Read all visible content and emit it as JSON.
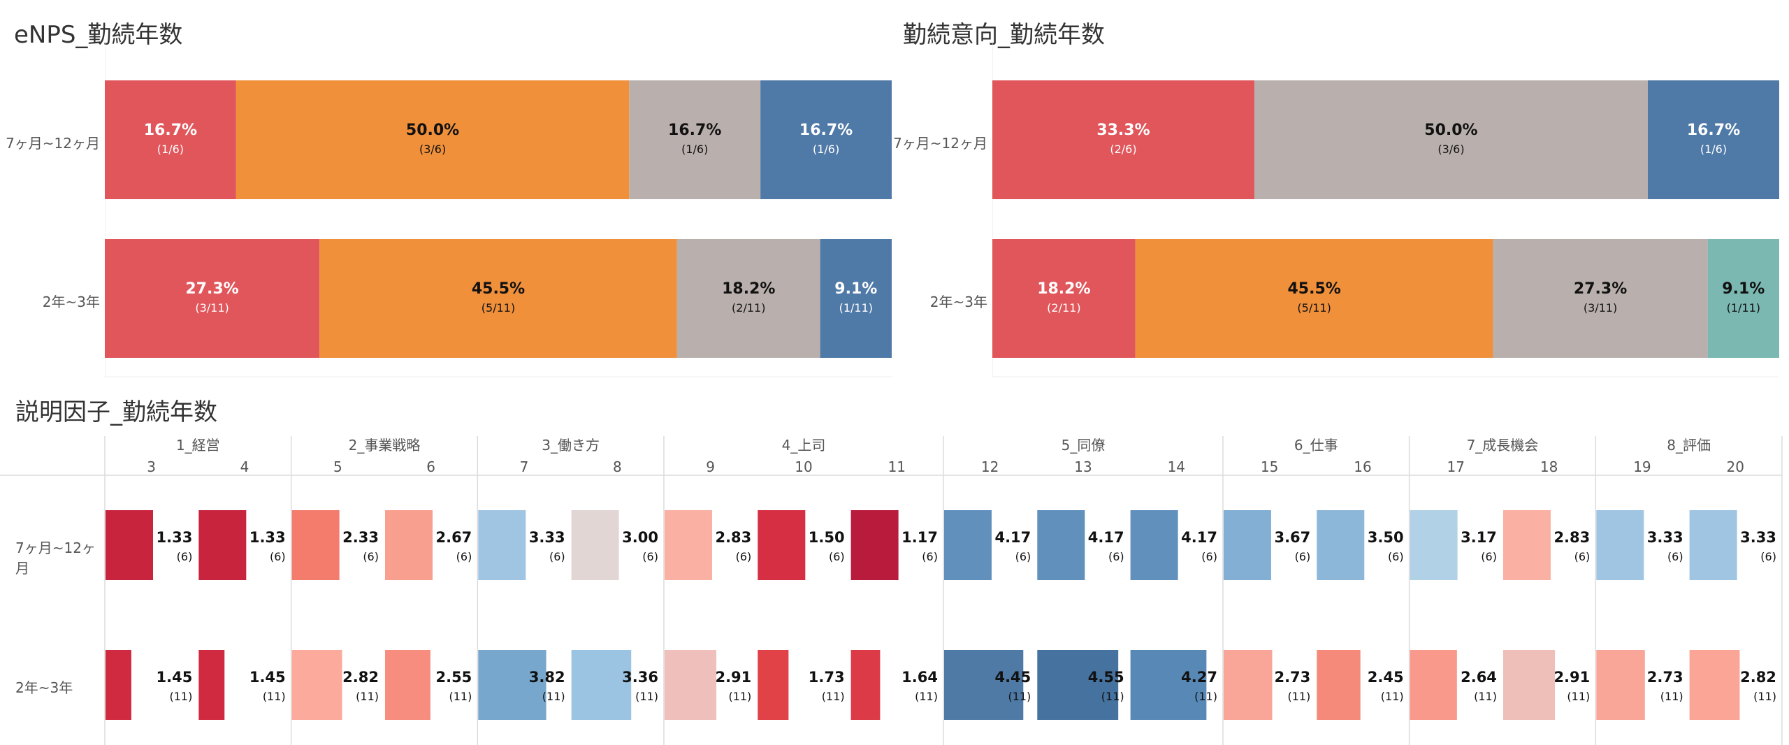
{
  "enps": {
    "title": "eNPS_勤続年数",
    "chart_data": {
      "type": "bar",
      "stacked": "100%",
      "title": "eNPS_勤続年数",
      "categories": [
        "7ヶ月~12ヶ月",
        "2年~3年"
      ],
      "segments": [
        [
          {
            "pct": "16.7%",
            "value": 16.7,
            "count": "(1/6)",
            "color": "#e0565b",
            "label_color": "#ffffff"
          },
          {
            "pct": "50.0%",
            "value": 50.0,
            "count": "(3/6)",
            "color": "#f0903b",
            "label_color": "#111111"
          },
          {
            "pct": "16.7%",
            "value": 16.7,
            "count": "(1/6)",
            "color": "#b9b0ad",
            "label_color": "#111111"
          },
          {
            "pct": "16.7%",
            "value": 16.7,
            "count": "(1/6)",
            "color": "#4f79a6",
            "label_color": "#ffffff"
          }
        ],
        [
          {
            "pct": "27.3%",
            "value": 27.3,
            "count": "(3/11)",
            "color": "#e0565b",
            "label_color": "#ffffff"
          },
          {
            "pct": "45.5%",
            "value": 45.5,
            "count": "(5/11)",
            "color": "#f0903b",
            "label_color": "#111111"
          },
          {
            "pct": "18.2%",
            "value": 18.2,
            "count": "(2/11)",
            "color": "#b9b0ad",
            "label_color": "#111111"
          },
          {
            "pct": "9.1%",
            "value": 9.1,
            "count": "(1/11)",
            "color": "#4f79a6",
            "label_color": "#ffffff"
          }
        ]
      ]
    }
  },
  "kinzoku": {
    "title": "勤続意向_勤続年数",
    "chart_data": {
      "type": "bar",
      "stacked": "100%",
      "title": "勤続意向_勤続年数",
      "categories": [
        "7ヶ月~12ヶ月",
        "2年~3年"
      ],
      "segments": [
        [
          {
            "pct": "33.3%",
            "value": 33.3,
            "count": "(2/6)",
            "color": "#e0565b",
            "label_color": "#ffffff"
          },
          {
            "pct": "50.0%",
            "value": 50.0,
            "count": "(3/6)",
            "color": "#b9b0ad",
            "label_color": "#111111"
          },
          {
            "pct": "16.7%",
            "value": 16.7,
            "count": "(1/6)",
            "color": "#4f79a6",
            "label_color": "#ffffff"
          }
        ],
        [
          {
            "pct": "18.2%",
            "value": 18.2,
            "count": "(2/11)",
            "color": "#e0565b",
            "label_color": "#ffffff"
          },
          {
            "pct": "45.5%",
            "value": 45.5,
            "count": "(5/11)",
            "color": "#f0903b",
            "label_color": "#111111"
          },
          {
            "pct": "27.3%",
            "value": 27.3,
            "count": "(3/11)",
            "color": "#b9b0ad",
            "label_color": "#111111"
          },
          {
            "pct": "9.1%",
            "value": 9.1,
            "count": "(1/11)",
            "color": "#7bb8b2",
            "label_color": "#111111"
          }
        ]
      ]
    }
  },
  "factors": {
    "title": "説明因子_勤続年数",
    "chart_data": {
      "type": "heatmap",
      "title": "説明因子_勤続年数",
      "rows": [
        "7ヶ月~12ヶ月",
        "2年~3年"
      ],
      "groups": [
        {
          "label": "1_経営",
          "items": [
            "3",
            "4"
          ]
        },
        {
          "label": "2_事業戦略",
          "items": [
            "5",
            "6"
          ]
        },
        {
          "label": "3_働き方",
          "items": [
            "7",
            "8"
          ]
        },
        {
          "label": "4_上司",
          "items": [
            "9",
            "10",
            "11"
          ]
        },
        {
          "label": "5_同僚",
          "items": [
            "12",
            "13",
            "14"
          ]
        },
        {
          "label": "6_仕事",
          "items": [
            "15",
            "16"
          ]
        },
        {
          "label": "7_成長機会",
          "items": [
            "17",
            "18"
          ]
        },
        {
          "label": "8_評価",
          "items": [
            "19",
            "20"
          ]
        }
      ],
      "series": [
        {
          "values": [
            "1.33",
            "1.33",
            "2.33",
            "2.67",
            "3.33",
            "3.00",
            "2.83",
            "1.50",
            "1.17",
            "4.17",
            "4.17",
            "4.17",
            "3.67",
            "3.50",
            "3.17",
            "2.83",
            "3.33",
            "3.33"
          ],
          "counts": [
            "(6)",
            "(6)",
            "(6)",
            "(6)",
            "(6)",
            "(6)",
            "(6)",
            "(6)",
            "(6)",
            "(6)",
            "(6)",
            "(6)",
            "(6)",
            "(6)",
            "(6)",
            "(6)",
            "(6)",
            "(6)"
          ],
          "colors": [
            "#c8243e",
            "#c8243e",
            "#f37c6d",
            "#f99f8f",
            "#9fc5e3",
            "#e2d6d5",
            "#fab1a3",
            "#d62f44",
            "#b81b3c",
            "#6190bd",
            "#6190bd",
            "#6190bd",
            "#82afd3",
            "#8db7d8",
            "#b1d1e6",
            "#fab1a3",
            "#9fc5e3",
            "#9fc5e3"
          ]
        },
        {
          "values": [
            "1.45",
            "1.45",
            "2.82",
            "2.55",
            "3.82",
            "3.36",
            "2.91",
            "1.73",
            "1.64",
            "4.45",
            "4.55",
            "4.27",
            "2.73",
            "2.45",
            "2.64",
            "2.91",
            "2.73",
            "2.82"
          ],
          "counts": [
            "(11)",
            "(11)",
            "(11)",
            "(11)",
            "(11)",
            "(11)",
            "(11)",
            "(11)",
            "(11)",
            "(11)",
            "(11)",
            "(11)",
            "(11)",
            "(11)",
            "(11)",
            "(11)",
            "(11)",
            "(11)"
          ],
          "colors": [
            "#cf2a40",
            "#cf2a40",
            "#fbaa9c",
            "#f78d7e",
            "#77a7cc",
            "#9bc3e2",
            "#efc0bb",
            "#e04248",
            "#db3a46",
            "#4f7aa6",
            "#45729f",
            "#5888b6",
            "#f9a597",
            "#f5897a",
            "#f8998b",
            "#eebeb8",
            "#f9a597",
            "#fba596"
          ]
        }
      ]
    }
  }
}
